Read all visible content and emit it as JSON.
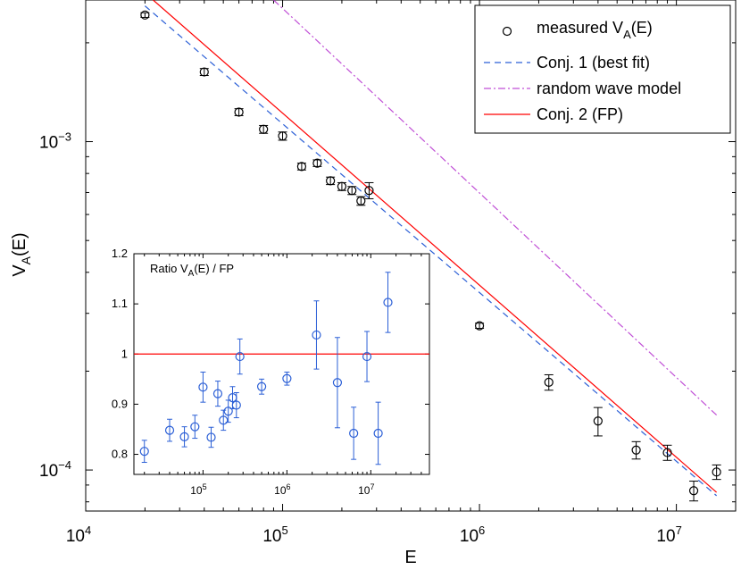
{
  "chart_data": [
    {
      "type": "scatter",
      "title": "",
      "xlabel": "E",
      "ylabel": "V_A(E)",
      "xscale": "log",
      "yscale": "log",
      "xlim": [
        10000,
        20000000
      ],
      "ylim": [
        7.5e-05,
        0.0027
      ],
      "x_ticks": [
        {
          "value": 10000,
          "base": "10",
          "exp": "4"
        },
        {
          "value": 100000,
          "base": "10",
          "exp": "5"
        },
        {
          "value": 1000000,
          "base": "10",
          "exp": "6"
        },
        {
          "value": 10000000,
          "base": "10",
          "exp": "7"
        }
      ],
      "y_ticks": [
        {
          "value": 0.0001,
          "base": "10",
          "exp": "−4"
        },
        {
          "value": 0.001,
          "base": "10",
          "exp": "−3"
        }
      ],
      "legend": {
        "placement": "top-right",
        "entries": [
          {
            "label": "measured V",
            "sub": "A",
            "suffix": "(E)",
            "style": "circle",
            "color": "#000000"
          },
          {
            "label": "Conj. 1 (best fit)",
            "style": "dashed",
            "color": "#2b5fd6"
          },
          {
            "label": "random wave model",
            "style": "dashdot",
            "color": "#c04fd6"
          },
          {
            "label": "Conj. 2 (FP)",
            "style": "solid",
            "color": "#ff0000"
          }
        ]
      },
      "series": [
        {
          "name": "measured V_A(E)",
          "style": "markers-errorbars",
          "color": "#000000",
          "points": [
            {
              "x": 20000,
              "y": 0.00243,
              "err": 4e-05
            },
            {
              "x": 40000,
              "y": 0.00163,
              "err": 4e-05
            },
            {
              "x": 60000,
              "y": 0.00123,
              "err": 3e-05
            },
            {
              "x": 80000,
              "y": 0.00109,
              "err": 3e-05
            },
            {
              "x": 100000,
              "y": 0.00104,
              "err": 3e-05
            },
            {
              "x": 125000,
              "y": 0.00084,
              "err": 2e-05
            },
            {
              "x": 150000,
              "y": 0.00086,
              "err": 2e-05
            },
            {
              "x": 175000,
              "y": 0.00076,
              "err": 2e-05
            },
            {
              "x": 200000,
              "y": 0.00073,
              "err": 2e-05
            },
            {
              "x": 225000,
              "y": 0.00071,
              "err": 2e-05
            },
            {
              "x": 250000,
              "y": 0.00066,
              "err": 2e-05
            },
            {
              "x": 275000,
              "y": 0.00071,
              "err": 4e-05
            },
            {
              "x": 500000,
              "y": 0.000393,
              "err": 6e-06
            },
            {
              "x": 1000000,
              "y": 0.000275,
              "err": 5e-06
            },
            {
              "x": 2250000,
              "y": 0.000185,
              "err": 1e-05
            },
            {
              "x": 4000000,
              "y": 0.000141,
              "err": 1.4e-05
            },
            {
              "x": 6250000,
              "y": 0.000115,
              "err": 7e-06
            },
            {
              "x": 9000000,
              "y": 0.000113,
              "err": 6e-06
            },
            {
              "x": 12250000,
              "y": 8.65e-05,
              "err": 6e-06
            },
            {
              "x": 16000000,
              "y": 9.86e-05,
              "err": 5e-06
            }
          ]
        },
        {
          "name": "Conj. 1 (best fit)",
          "style": "dashed",
          "color": "#2b5fd6",
          "x": [
            20000,
            16000000
          ],
          "y": [
            0.00259,
            8.35e-05
          ]
        },
        {
          "name": "random wave model",
          "style": "dashdot",
          "color": "#c04fd6",
          "x": [
            90000,
            16000000
          ],
          "y": [
            0.0027,
            0.000147
          ]
        },
        {
          "name": "Conj. 2 (FP)",
          "style": "solid",
          "color": "#ff0000",
          "x": [
            22000,
            16000000
          ],
          "y": [
            0.0027,
            8.55e-05
          ]
        }
      ]
    },
    {
      "type": "scatter",
      "title": "",
      "annotation": {
        "prefix": "Ratio V",
        "sub": "A",
        "suffix": "(E) / FP"
      },
      "xscale": "log",
      "xlim": [
        15000,
        50000000
      ],
      "ylim": [
        0.76,
        1.2
      ],
      "x_ticks": [
        {
          "value": 100000,
          "base": "10",
          "exp": "5"
        },
        {
          "value": 1000000,
          "base": "10",
          "exp": "6"
        },
        {
          "value": 10000000,
          "base": "10",
          "exp": "7"
        }
      ],
      "y_ticks": [
        "0.8",
        "0.9",
        "1",
        "1.1",
        "1.2"
      ],
      "y_tick_values": [
        0.8,
        0.9,
        1.0,
        1.1,
        1.2
      ],
      "reference_line": {
        "y": 1.0,
        "color": "#ff0000"
      },
      "series": [
        {
          "name": "Ratio V_A(E) / FP",
          "style": "markers-errorbars",
          "color": "#2b5fd6",
          "points": [
            {
              "x": 20000,
              "y": 0.806,
              "err": 0.022
            },
            {
              "x": 40000,
              "y": 0.848,
              "err": 0.022
            },
            {
              "x": 60000,
              "y": 0.835,
              "err": 0.02
            },
            {
              "x": 80000,
              "y": 0.855,
              "err": 0.023
            },
            {
              "x": 100000,
              "y": 0.934,
              "err": 0.03
            },
            {
              "x": 125000,
              "y": 0.834,
              "err": 0.02
            },
            {
              "x": 150000,
              "y": 0.921,
              "err": 0.025
            },
            {
              "x": 175000,
              "y": 0.868,
              "err": 0.02
            },
            {
              "x": 200000,
              "y": 0.886,
              "err": 0.022
            },
            {
              "x": 225000,
              "y": 0.913,
              "err": 0.022
            },
            {
              "x": 250000,
              "y": 0.898,
              "err": 0.025
            },
            {
              "x": 275000,
              "y": 0.995,
              "err": 0.035
            },
            {
              "x": 500000,
              "y": 0.935,
              "err": 0.015
            },
            {
              "x": 1000000,
              "y": 0.951,
              "err": 0.013
            },
            {
              "x": 2250000,
              "y": 1.038,
              "err": 0.068
            },
            {
              "x": 4000000,
              "y": 0.943,
              "err": 0.09
            },
            {
              "x": 6250000,
              "y": 0.842,
              "err": 0.052
            },
            {
              "x": 9000000,
              "y": 0.995,
              "err": 0.05
            },
            {
              "x": 12250000,
              "y": 0.842,
              "err": 0.062
            },
            {
              "x": 16000000,
              "y": 1.103,
              "err": 0.06
            }
          ]
        }
      ]
    }
  ]
}
